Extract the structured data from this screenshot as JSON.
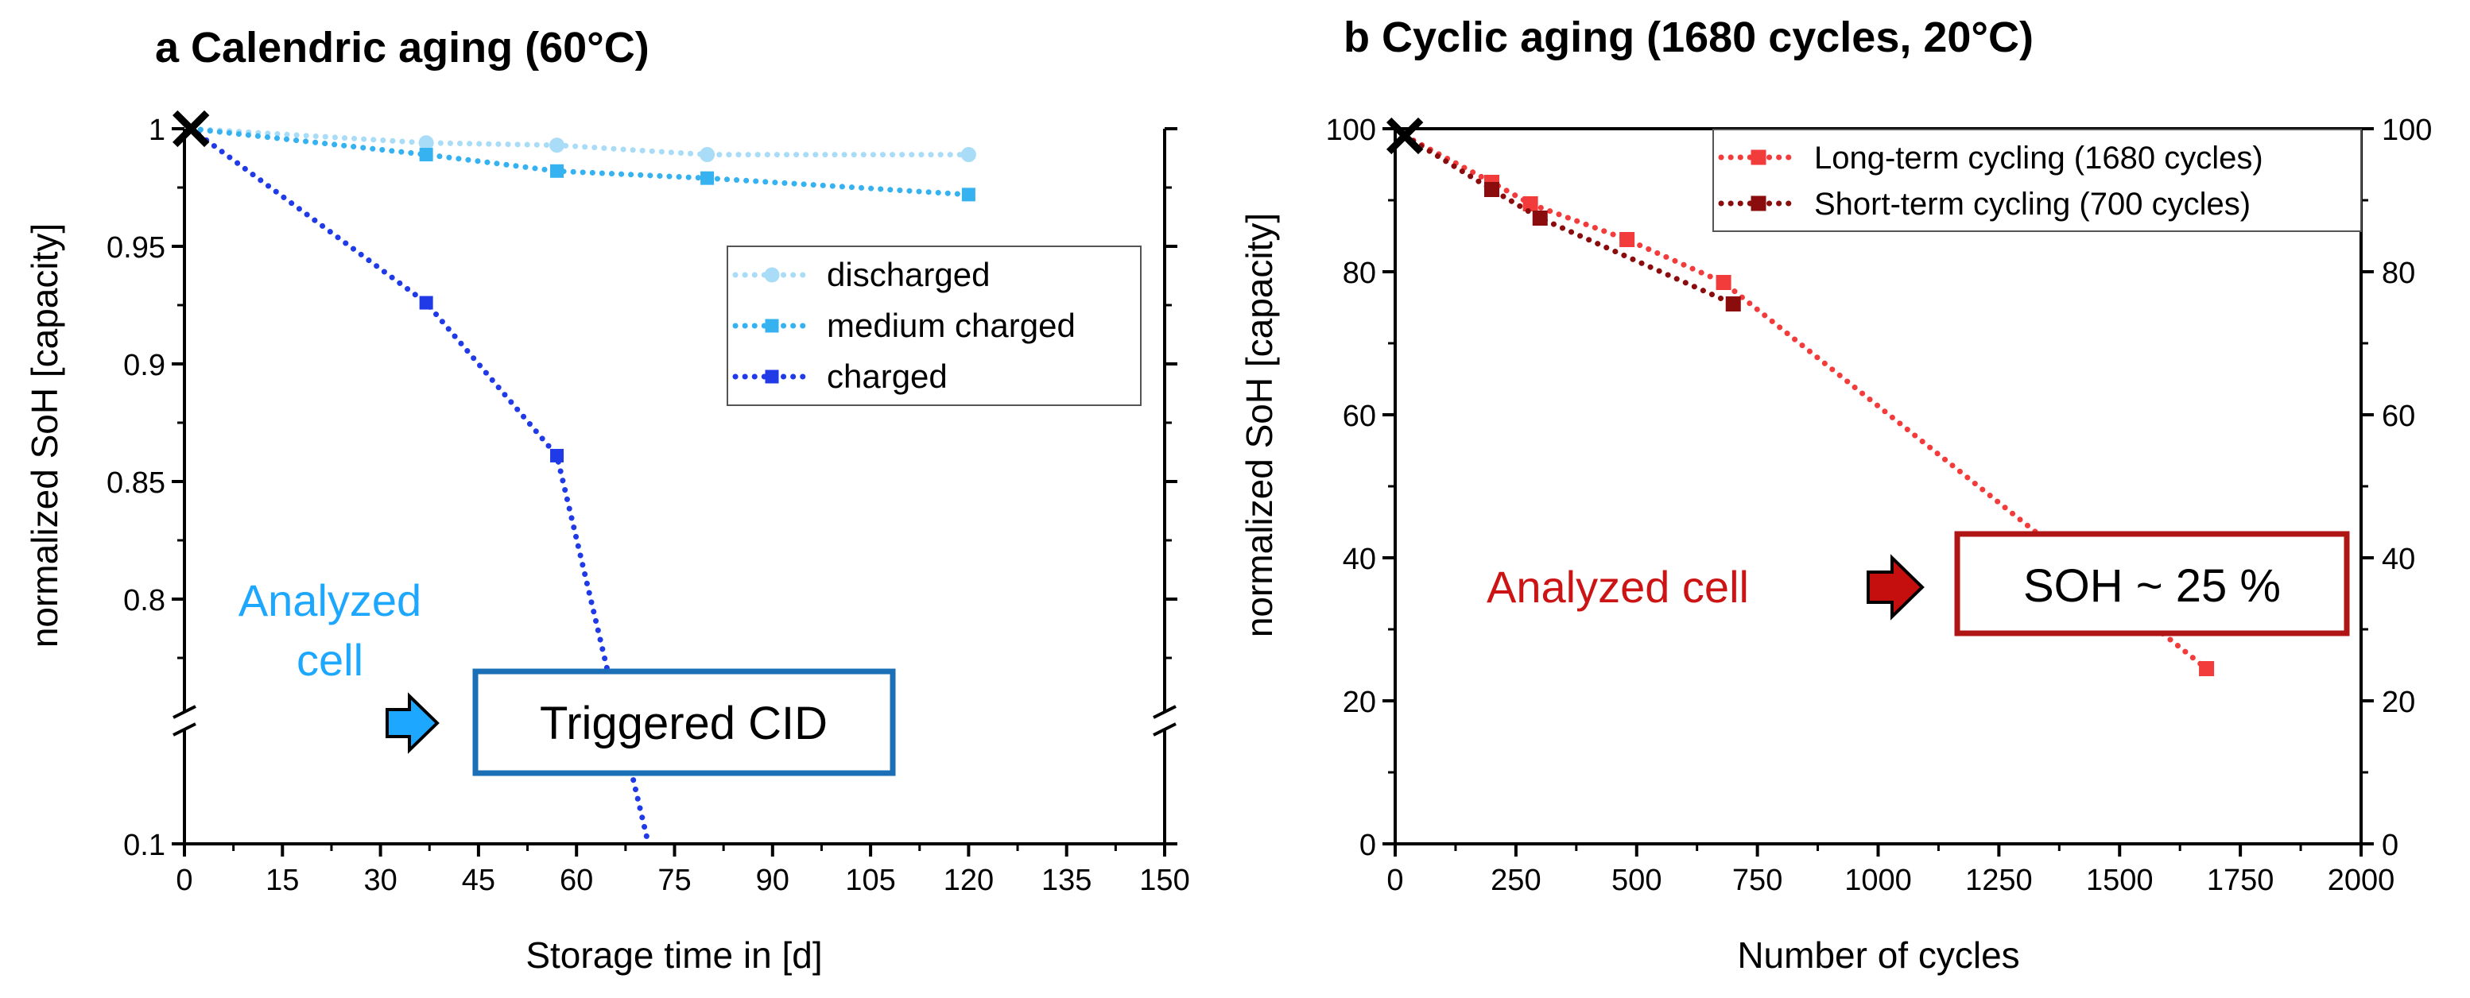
{
  "chart_data": [
    {
      "type": "line",
      "panel_label": "a",
      "title": "a Calendric aging (60°C)",
      "xlabel": "Storage time in [d]",
      "ylabel": "normalized SoH [capacity]",
      "xlim": [
        0,
        150
      ],
      "x_ticks": [
        0,
        15,
        30,
        45,
        60,
        75,
        90,
        105,
        120,
        135,
        150
      ],
      "y_ticks": [
        {
          "value": 1.0,
          "label": "1"
        },
        {
          "value": 0.95,
          "label": "0.95"
        },
        {
          "value": 0.9,
          "label": "0.9"
        },
        {
          "value": 0.85,
          "label": "0.85"
        },
        {
          "value": 0.8,
          "label": "0.8"
        },
        {
          "value": 0.1,
          "label": "0.1"
        }
      ],
      "y_axis_break": {
        "upper_segment": [
          0.75,
          1.0
        ],
        "lower_segment": [
          0.1,
          0.75
        ]
      },
      "start_marker": {
        "x": 1,
        "y": 1.0,
        "symbol": "×"
      },
      "series": [
        {
          "name": "discharged",
          "color": "#a9dcf7",
          "marker": "circle",
          "x": [
            1,
            37,
            57,
            80,
            120
          ],
          "y": [
            1.0,
            0.994,
            0.993,
            0.989,
            0.989
          ]
        },
        {
          "name": "medium charged",
          "color": "#36b2f0",
          "marker": "square",
          "x": [
            1,
            37,
            57,
            80,
            120
          ],
          "y": [
            1.0,
            0.989,
            0.982,
            0.979,
            0.972
          ]
        },
        {
          "name": "charged",
          "color": "#1f3ae6",
          "marker": "square",
          "x": [
            1,
            37,
            57,
            71
          ],
          "y": [
            1.0,
            0.926,
            0.861,
            0.1
          ]
        }
      ],
      "legend": [
        "discharged",
        "medium charged",
        "charged"
      ],
      "annotations": {
        "analyzed_line1": "Analyzed",
        "analyzed_line2": "cell",
        "box_text": "Triggered CID"
      }
    },
    {
      "type": "line",
      "panel_label": "b",
      "title": "b Cyclic aging (1680 cycles, 20°C)",
      "xlabel": "Number of cycles",
      "ylabel": "normalized SoH [capacity]",
      "xlim": [
        0,
        2000
      ],
      "ylim": [
        0,
        100
      ],
      "x_ticks": [
        0,
        250,
        500,
        750,
        1000,
        1250,
        1500,
        1750,
        2000
      ],
      "y_ticks": [
        0,
        20,
        40,
        60,
        80,
        100
      ],
      "y_right_ticks": [
        0,
        20,
        40,
        60,
        80,
        100
      ],
      "start_marker": {
        "x": 20,
        "y": 99,
        "symbol": "×"
      },
      "series": [
        {
          "name": "Long-term cycling (1680 cycles)",
          "color": "#f23b3b",
          "marker": "square",
          "x": [
            20,
            200,
            280,
            480,
            680,
            1680
          ],
          "y": [
            99,
            92.5,
            89.5,
            84.5,
            78.5,
            24.5
          ]
        },
        {
          "name": "Short-term cycling (700 cycles)",
          "color": "#8b0c0c",
          "marker": "square",
          "x": [
            20,
            200,
            300,
            700
          ],
          "y": [
            99,
            91.5,
            87.5,
            75.5
          ]
        }
      ],
      "legend": [
        "Long-term cycling (1680 cycles)",
        "Short-term cycling (700 cycles)"
      ],
      "annotations": {
        "analyzed": "Analyzed cell",
        "box_text": "SOH ~ 25 %"
      }
    }
  ]
}
